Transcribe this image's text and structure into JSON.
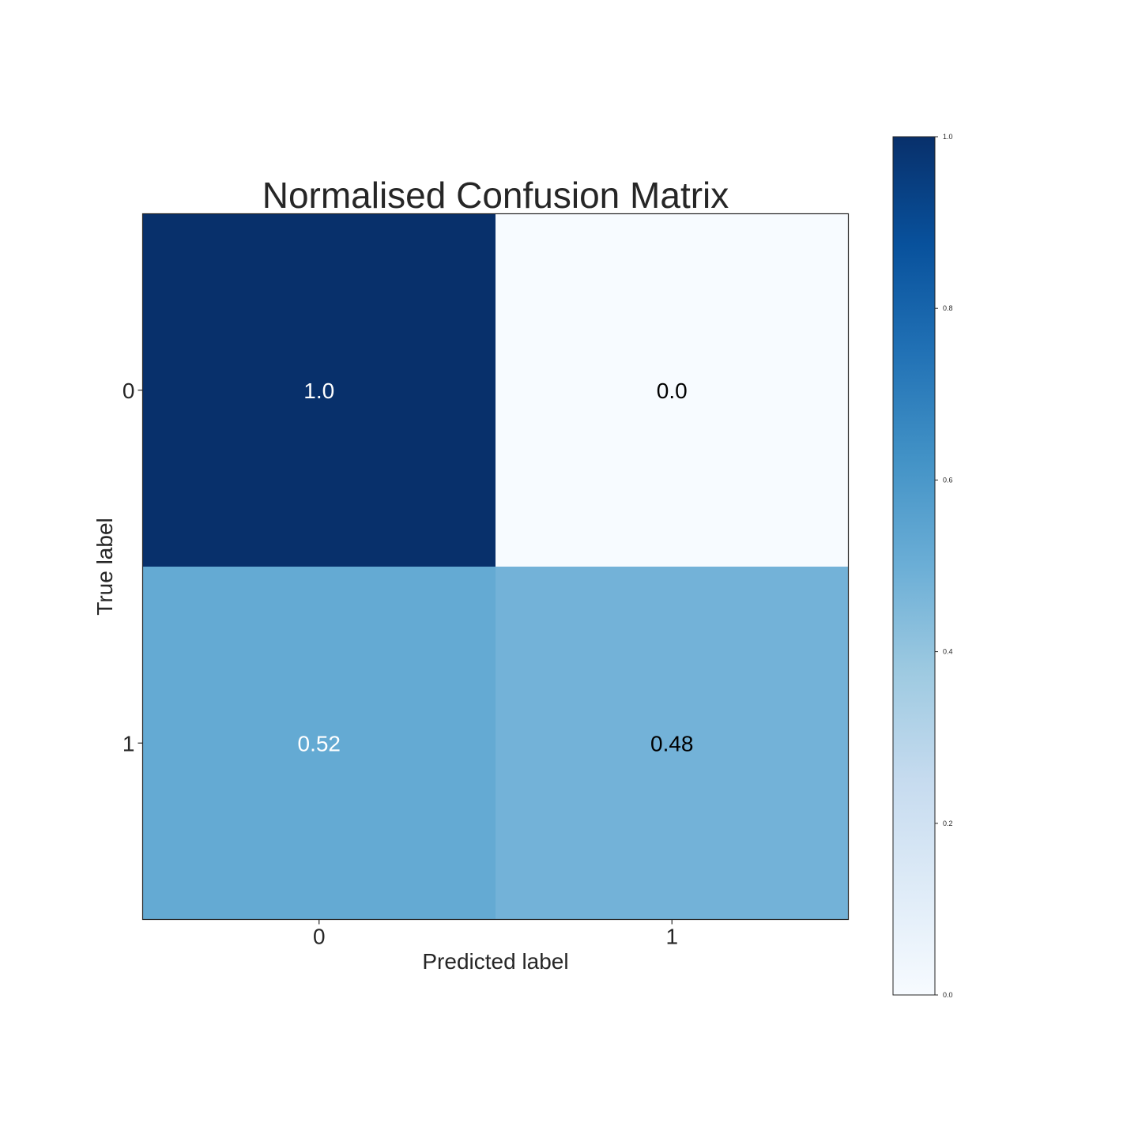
{
  "chart_data": {
    "type": "heatmap",
    "title": "Normalised Confusion Matrix",
    "xlabel": "Predicted label",
    "ylabel": "True label",
    "x_categories": [
      "0",
      "1"
    ],
    "y_categories": [
      "0",
      "1"
    ],
    "values": [
      [
        1.0,
        0.0
      ],
      [
        0.52,
        0.48
      ]
    ],
    "cell_labels": [
      [
        "1.0",
        "0.0"
      ],
      [
        "0.52",
        "0.48"
      ]
    ],
    "colormap": "Blues",
    "colorbar": {
      "range": [
        0.0,
        1.0
      ],
      "ticks": [
        0.0,
        0.2,
        0.4,
        0.6,
        0.8,
        1.0
      ],
      "tick_labels": [
        "0.0",
        "0.2",
        "0.4",
        "0.6",
        "0.8",
        "1.0"
      ]
    },
    "grid": false
  },
  "colors": {
    "text_dark": "#262626",
    "text_on_dark": "#ffffff",
    "text_on_light": "#000000",
    "frame": "#262626",
    "colormap_stops": [
      "#f7fbff",
      "#deebf7",
      "#c6dbef",
      "#9ecae1",
      "#6baed6",
      "#4292c6",
      "#2171b5",
      "#08519c",
      "#08306b"
    ]
  }
}
